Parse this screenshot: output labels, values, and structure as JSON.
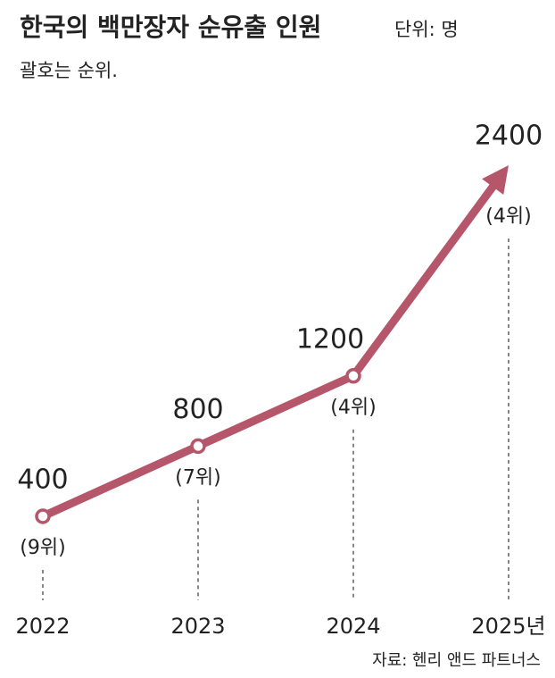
{
  "chart_data": {
    "type": "line",
    "title": "한국의 백만장자 순유출 인원",
    "subtitle": "단위: 명",
    "note": "괄호는 순위.",
    "source": "자료: 헨리 앤드 파트너스",
    "categories": [
      "2022",
      "2023",
      "2024",
      "2025년"
    ],
    "values": [
      400,
      800,
      1200,
      2400
    ],
    "rank_labels": [
      "(9위)",
      "(7위)",
      "(4위)",
      "(4위)"
    ],
    "color": "#b5566b"
  }
}
